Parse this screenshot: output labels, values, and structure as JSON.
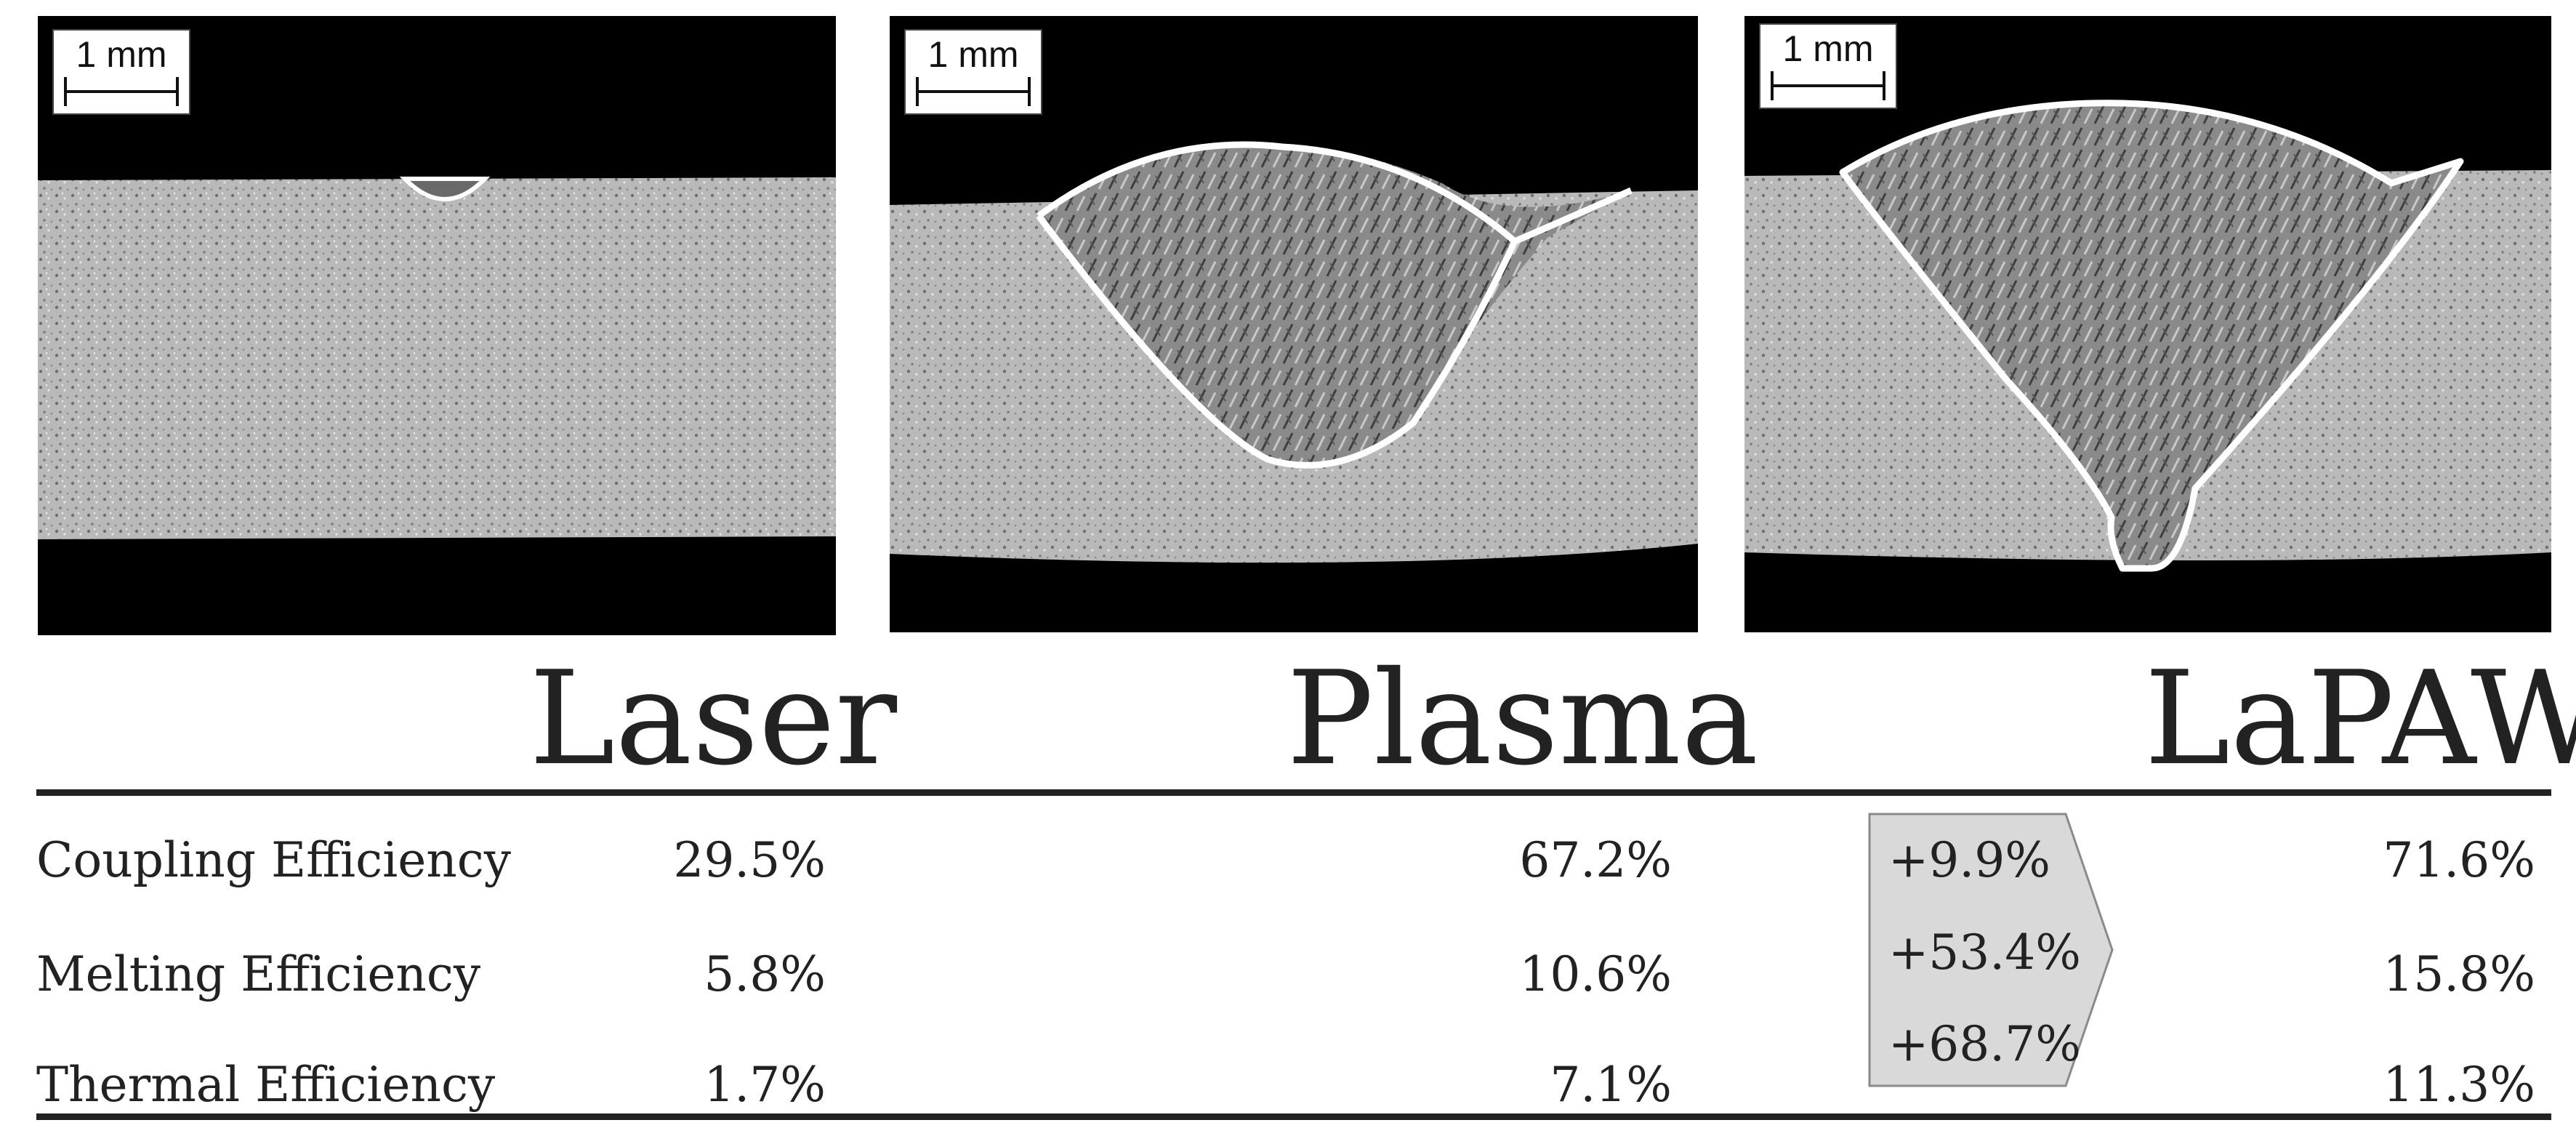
{
  "scale_label": "1 mm",
  "processes": {
    "laser": "Laser",
    "plasma": "Plasma",
    "lapaw": "LaPAW"
  },
  "rows": [
    {
      "label": "Coupling Efficiency",
      "laser": "29.5%",
      "plasma": "67.2%",
      "gain": "+9.9%",
      "lapaw": "71.6%"
    },
    {
      "label": "Melting Efficiency",
      "laser": "5.8%",
      "plasma": "10.6%",
      "gain": "+53.4%",
      "lapaw": "15.8%"
    },
    {
      "label": "Thermal Efficiency",
      "laser": "1.7%",
      "plasma": "7.1%",
      "gain": "+68.7%",
      "lapaw": "11.3%"
    }
  ],
  "colors": {
    "background": "#000000",
    "material": "#b4b4b4",
    "weld_outline": "#ffffff",
    "gain_box": "#d9d9d9"
  }
}
